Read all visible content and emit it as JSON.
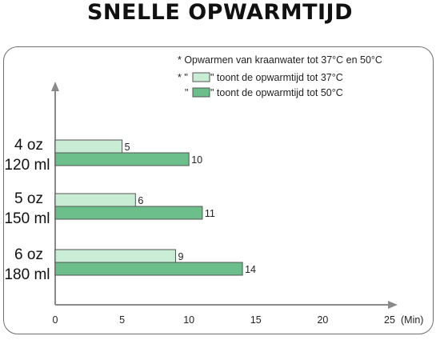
{
  "title": "SNELLE OPWARMTIJD",
  "note": "* Opwarmen van kraanwater tot 37°C en 50°C",
  "legend": [
    {
      "prefix": "* \"",
      "suffix": "\" toont de opwarmtijd tot 37°C",
      "color": "#c9ecd5"
    },
    {
      "prefix": "\"",
      "suffix": "\" toont de opwarmtijd tot 50°C",
      "color": "#6cbe8a"
    }
  ],
  "chart_data": {
    "type": "bar",
    "orientation": "horizontal",
    "categories": [
      {
        "line1": "4 oz",
        "line2": "120 ml"
      },
      {
        "line1": "5 oz",
        "line2": "150 ml"
      },
      {
        "line1": "6 oz",
        "line2": "180 ml"
      }
    ],
    "series": [
      {
        "values": [
          5,
          6,
          9
        ],
        "color": "#c9ecd5"
      },
      {
        "values": [
          10,
          11,
          14
        ],
        "color": "#6cbe8a"
      }
    ],
    "xlim": [
      0,
      25
    ],
    "xticks": [
      0,
      5,
      10,
      15,
      20,
      25
    ],
    "xunit": "(Min)",
    "grid": false
  }
}
